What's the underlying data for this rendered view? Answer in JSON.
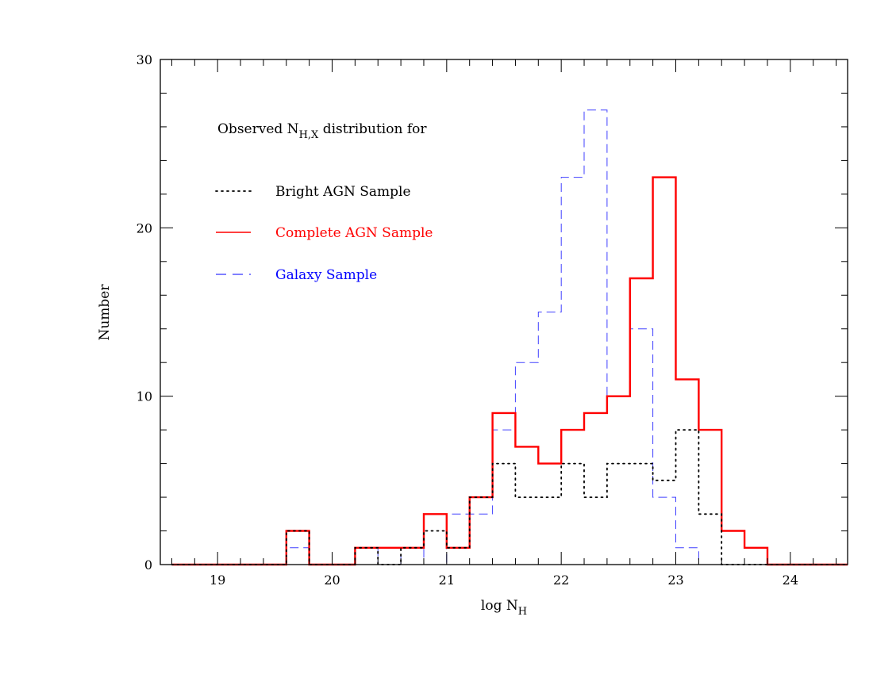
{
  "chart_data": {
    "type": "histogram-step",
    "xlabel": {
      "main": "log N",
      "sub": "H"
    },
    "ylabel": "Number",
    "xlim": [
      18.5,
      24.5
    ],
    "ylim": [
      0,
      30
    ],
    "x_ticks": [
      19,
      20,
      21,
      22,
      23,
      24
    ],
    "x_minor_step": 0.2,
    "y_ticks": [
      0,
      10,
      20,
      30
    ],
    "y_minor_step": 2,
    "bin_edges": [
      18.6,
      18.8,
      19.0,
      19.2,
      19.4,
      19.6,
      19.8,
      20.0,
      20.2,
      20.4,
      20.6,
      20.8,
      21.0,
      21.2,
      21.4,
      21.6,
      21.8,
      22.0,
      22.2,
      22.4,
      22.6,
      22.8,
      23.0,
      23.2,
      23.4,
      23.6,
      23.8,
      24.0,
      24.2,
      24.4,
      24.5
    ],
    "legend": {
      "title_main": "Observed N",
      "title_sub": "H,X",
      "title_rest": " distribution for"
    },
    "series": [
      {
        "name": "Bright AGN Sample",
        "style": "dotted",
        "color": "#000000",
        "counts": [
          0,
          0,
          0,
          0,
          0,
          2,
          0,
          0,
          1,
          0,
          1,
          2,
          1,
          4,
          6,
          4,
          4,
          6,
          4,
          6,
          6,
          5,
          8,
          3,
          0,
          0,
          0,
          0,
          0,
          0
        ]
      },
      {
        "name": "Complete AGN Sample",
        "style": "solid",
        "color": "#ff0000",
        "counts": [
          0,
          0,
          0,
          0,
          0,
          2,
          0,
          0,
          1,
          1,
          1,
          3,
          1,
          4,
          9,
          7,
          6,
          8,
          9,
          10,
          17,
          23,
          11,
          8,
          2,
          1,
          0,
          0,
          0,
          0
        ]
      },
      {
        "name": "Galaxy Sample",
        "style": "dashed",
        "color": "#0000ff",
        "counts": [
          0,
          0,
          0,
          0,
          0,
          1,
          0,
          0,
          1,
          0,
          1,
          0,
          3,
          3,
          8,
          12,
          15,
          23,
          27,
          10,
          14,
          4,
          1,
          0,
          0,
          0,
          0,
          0,
          0,
          0
        ]
      }
    ]
  }
}
